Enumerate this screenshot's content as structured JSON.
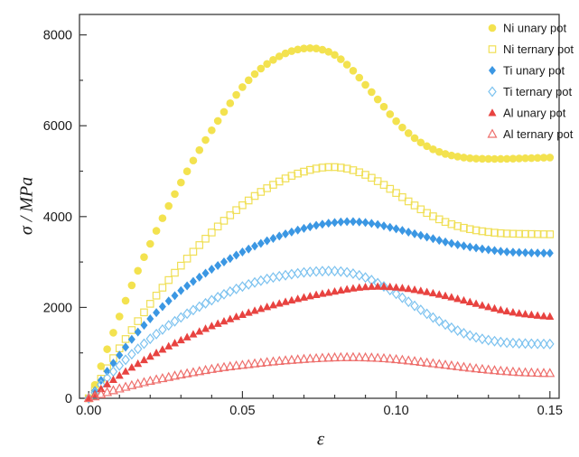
{
  "figure": {
    "background": "#ffffff",
    "frame_color": "#3a3a3a"
  },
  "chart_data": {
    "type": "scatter",
    "title": "",
    "xlabel": "ε",
    "ylabel": "σ / MPa",
    "legend_position": "top-right-inside",
    "grid": false,
    "x_range": [
      -0.003,
      0.153
    ],
    "y_range": [
      0,
      8450
    ],
    "x_ticks": {
      "major": [
        0,
        0.05,
        0.1,
        0.15
      ],
      "labels": [
        "0.00",
        "0.05",
        "0.10",
        "0.15"
      ],
      "minor_step": 0.01
    },
    "y_ticks": {
      "major": [
        0,
        2000,
        4000,
        6000,
        8000
      ],
      "labels": [
        "0",
        "2000",
        "4000",
        "6000",
        "8000"
      ],
      "minor_step": 1000
    },
    "x_control": [
      0,
      0.005,
      0.01,
      0.015,
      0.02,
      0.025,
      0.03,
      0.035,
      0.04,
      0.045,
      0.05,
      0.055,
      0.06,
      0.065,
      0.07,
      0.075,
      0.08,
      0.085,
      0.09,
      0.095,
      0.1,
      0.105,
      0.11,
      0.115,
      0.12,
      0.125,
      0.13,
      0.135,
      0.14,
      0.145,
      0.15
    ],
    "marker_step": 0.002,
    "series": [
      {
        "name": "Ni unary pot",
        "marker": "circle",
        "filled": true,
        "color": "#f3e24f",
        "values": [
          0,
          900,
          1800,
          2650,
          3400,
          4100,
          4750,
          5350,
          5900,
          6400,
          6850,
          7200,
          7450,
          7620,
          7700,
          7690,
          7560,
          7280,
          6900,
          6500,
          6100,
          5780,
          5550,
          5400,
          5320,
          5280,
          5270,
          5270,
          5280,
          5290,
          5300
        ]
      },
      {
        "name": "Ni ternary pot",
        "marker": "square",
        "filled": false,
        "color": "#f0df55",
        "values": [
          0,
          550,
          1100,
          1600,
          2080,
          2520,
          2920,
          3300,
          3650,
          3970,
          4250,
          4500,
          4700,
          4870,
          4990,
          5070,
          5090,
          5040,
          4920,
          4740,
          4520,
          4290,
          4080,
          3910,
          3790,
          3710,
          3660,
          3630,
          3620,
          3615,
          3610
        ]
      },
      {
        "name": "Ti unary pot",
        "marker": "diamond",
        "filled": true,
        "color": "#3b97e3",
        "values": [
          0,
          500,
          950,
          1380,
          1750,
          2080,
          2370,
          2620,
          2840,
          3040,
          3220,
          3380,
          3520,
          3640,
          3740,
          3820,
          3870,
          3890,
          3870,
          3810,
          3730,
          3640,
          3550,
          3460,
          3380,
          3320,
          3270,
          3230,
          3210,
          3200,
          3195
        ]
      },
      {
        "name": "Ti ternary pot",
        "marker": "diamond",
        "filled": false,
        "color": "#7cc2ef",
        "values": [
          0,
          380,
          720,
          1030,
          1310,
          1560,
          1780,
          1980,
          2160,
          2320,
          2460,
          2570,
          2660,
          2720,
          2770,
          2795,
          2800,
          2760,
          2660,
          2500,
          2300,
          2080,
          1860,
          1660,
          1490,
          1360,
          1280,
          1230,
          1210,
          1200,
          1195
        ]
      },
      {
        "name": "Al unary pot",
        "marker": "triangle",
        "filled": true,
        "color": "#e84340",
        "values": [
          0,
          260,
          500,
          720,
          920,
          1110,
          1280,
          1440,
          1590,
          1720,
          1840,
          1950,
          2050,
          2140,
          2220,
          2290,
          2350,
          2410,
          2450,
          2460,
          2440,
          2400,
          2340,
          2270,
          2190,
          2100,
          2010,
          1930,
          1870,
          1830,
          1800
        ]
      },
      {
        "name": "Al ternary pot",
        "marker": "triangle",
        "filled": false,
        "color": "#ee6f6c",
        "values": [
          0,
          110,
          210,
          300,
          380,
          450,
          520,
          580,
          640,
          690,
          730,
          770,
          805,
          835,
          860,
          880,
          895,
          900,
          895,
          880,
          855,
          820,
          780,
          740,
          700,
          660,
          625,
          595,
          572,
          558,
          550
        ]
      }
    ]
  }
}
